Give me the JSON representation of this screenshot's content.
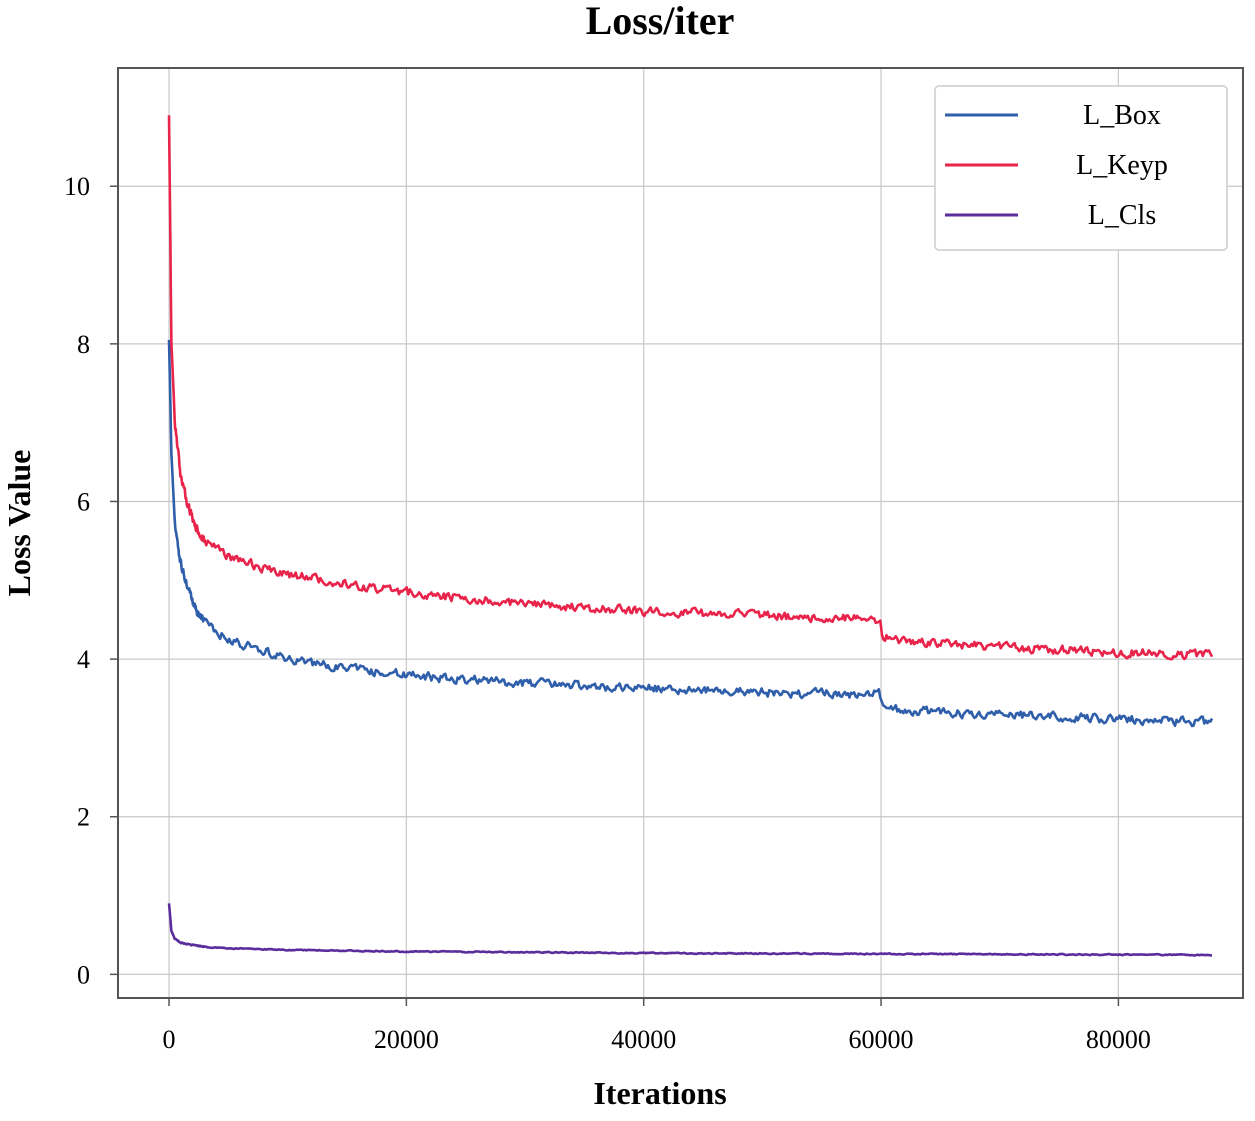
{
  "chart_data": {
    "type": "line",
    "title": "Loss/iter",
    "xlabel": "Iterations",
    "ylabel": "Loss Value",
    "xlim": [
      -4300,
      90500
    ],
    "ylim": [
      -0.3,
      11.5
    ],
    "xticks": [
      0,
      20000,
      40000,
      60000,
      80000
    ],
    "xtick_labels": [
      "0",
      "20000",
      "40000",
      "60000",
      "80000"
    ],
    "yticks": [
      0,
      2,
      4,
      6,
      8,
      10
    ],
    "ytick_labels": [
      "0",
      "2",
      "4",
      "6",
      "8",
      "10"
    ],
    "grid": true,
    "legend_position": "top-right",
    "series": [
      {
        "name": "L_Box",
        "color": "#2f5faa",
        "noise": 0.05,
        "x": [
          0,
          200,
          500,
          1000,
          2000,
          3000,
          5000,
          8000,
          10000,
          15000,
          20000,
          25000,
          30000,
          35000,
          40000,
          45000,
          50000,
          55000,
          59900,
          60100,
          61000,
          65000,
          70000,
          75000,
          80000,
          85000,
          88000
        ],
        "y": [
          8.05,
          6.6,
          5.7,
          5.2,
          4.7,
          4.45,
          4.25,
          4.1,
          4.0,
          3.88,
          3.8,
          3.74,
          3.7,
          3.66,
          3.63,
          3.61,
          3.58,
          3.56,
          3.56,
          3.4,
          3.36,
          3.32,
          3.29,
          3.27,
          3.24,
          3.21,
          3.2
        ]
      },
      {
        "name": "L_Keyp",
        "color": "#e8244b",
        "noise": 0.05,
        "x": [
          0,
          200,
          500,
          1000,
          2000,
          3000,
          5000,
          8000,
          10000,
          15000,
          20000,
          25000,
          30000,
          35000,
          40000,
          45000,
          50000,
          55000,
          59900,
          60100,
          61000,
          65000,
          70000,
          75000,
          80000,
          85000,
          88000
        ],
        "y": [
          10.9,
          8.0,
          7.0,
          6.3,
          5.75,
          5.5,
          5.3,
          5.15,
          5.08,
          4.95,
          4.85,
          4.77,
          4.7,
          4.65,
          4.61,
          4.58,
          4.55,
          4.52,
          4.5,
          4.3,
          4.24,
          4.2,
          4.16,
          4.12,
          4.09,
          4.06,
          4.05
        ]
      },
      {
        "name": "L_Cls",
        "color": "#5b2d9c",
        "noise": 0.006,
        "x": [
          0,
          200,
          500,
          1000,
          2000,
          3000,
          5000,
          10000,
          20000,
          30000,
          40000,
          50000,
          60000,
          70000,
          80000,
          88000
        ],
        "y": [
          0.9,
          0.55,
          0.45,
          0.4,
          0.37,
          0.35,
          0.33,
          0.31,
          0.29,
          0.28,
          0.27,
          0.265,
          0.26,
          0.255,
          0.25,
          0.245
        ]
      }
    ]
  }
}
